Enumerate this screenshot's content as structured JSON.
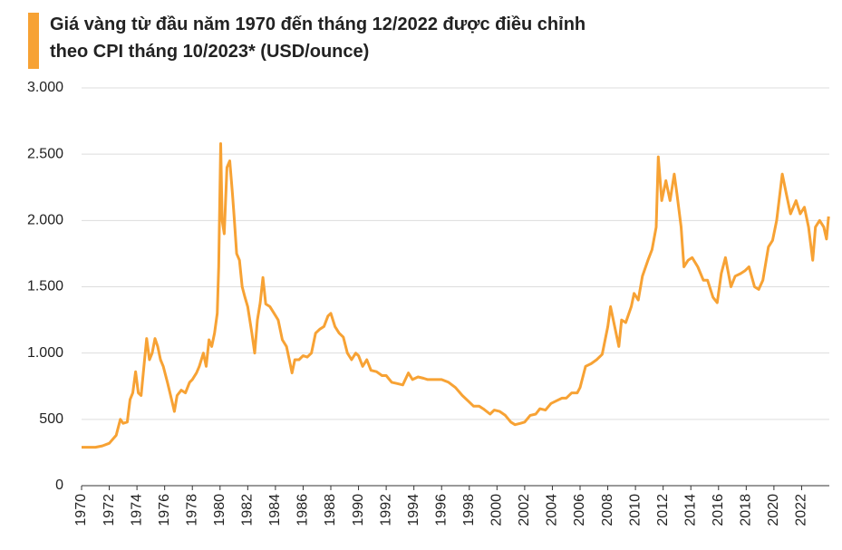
{
  "chart_data": {
    "type": "line",
    "title": [
      "Giá vàng từ đầu năm 1970 đến tháng 12/2022 được điều chỉnh",
      "theo CPI tháng 10/2023* (USD/ounce)"
    ],
    "xlim": [
      1970,
      2024
    ],
    "xticks": [
      1970,
      1972,
      1974,
      1976,
      1978,
      1980,
      1982,
      1984,
      1986,
      1988,
      1990,
      1992,
      1994,
      1996,
      1998,
      2000,
      2002,
      2004,
      2006,
      2008,
      2010,
      2012,
      2014,
      2016,
      2018,
      2020,
      2022
    ],
    "ylim": [
      0,
      3000
    ],
    "yticks": [
      0,
      500,
      {
        "value": 1000,
        "label": "1.000"
      },
      {
        "value": 1500,
        "label": "1.500"
      },
      {
        "value": 2000,
        "label": "2.000"
      },
      {
        "value": 2500,
        "label": "2.500"
      },
      {
        "value": 3000,
        "label": "3.000"
      }
    ],
    "grid": true,
    "color": "#f7a234",
    "x": [
      1970.0,
      1971.0,
      1971.5,
      1972.0,
      1972.5,
      1972.8,
      1973.0,
      1973.3,
      1973.5,
      1973.7,
      1973.9,
      1974.1,
      1974.3,
      1974.5,
      1974.7,
      1974.9,
      1975.1,
      1975.3,
      1975.5,
      1975.7,
      1975.9,
      1976.2,
      1976.5,
      1976.7,
      1976.9,
      1977.2,
      1977.5,
      1977.8,
      1978.0,
      1978.3,
      1978.5,
      1978.8,
      1979.0,
      1979.2,
      1979.4,
      1979.6,
      1979.8,
      1979.9,
      1980.05,
      1980.15,
      1980.3,
      1980.5,
      1980.7,
      1980.9,
      1981.0,
      1981.2,
      1981.4,
      1981.6,
      1981.8,
      1982.0,
      1982.3,
      1982.5,
      1982.7,
      1982.9,
      1983.1,
      1983.3,
      1983.6,
      1983.9,
      1984.2,
      1984.5,
      1984.8,
      1985.0,
      1985.2,
      1985.4,
      1985.7,
      1986.0,
      1986.3,
      1986.6,
      1986.9,
      1987.2,
      1987.5,
      1987.8,
      1988.0,
      1988.3,
      1988.6,
      1988.9,
      1989.2,
      1989.5,
      1989.8,
      1990.0,
      1990.3,
      1990.6,
      1990.9,
      1991.3,
      1991.7,
      1992.0,
      1992.4,
      1992.8,
      1993.2,
      1993.6,
      1993.9,
      1994.3,
      1994.7,
      1995.0,
      1995.5,
      1996.0,
      1996.5,
      1997.0,
      1997.5,
      1997.9,
      1998.3,
      1998.7,
      1999.0,
      1999.5,
      1999.8,
      2000.2,
      2000.6,
      2001.0,
      2001.3,
      2001.7,
      2002.0,
      2002.4,
      2002.8,
      2003.1,
      2003.5,
      2003.9,
      2004.3,
      2004.7,
      2005.0,
      2005.4,
      2005.8,
      2006.0,
      2006.4,
      2006.8,
      2007.2,
      2007.6,
      2008.0,
      2008.2,
      2008.5,
      2008.8,
      2009.0,
      2009.3,
      2009.7,
      2009.9,
      2010.2,
      2010.5,
      2010.9,
      2011.2,
      2011.5,
      2011.65,
      2011.9,
      2012.2,
      2012.5,
      2012.8,
      2013.0,
      2013.3,
      2013.5,
      2013.8,
      2014.1,
      2014.5,
      2014.9,
      2015.2,
      2015.6,
      2015.9,
      2016.2,
      2016.5,
      2016.9,
      2017.2,
      2017.6,
      2017.9,
      2018.2,
      2018.6,
      2018.9,
      2019.2,
      2019.6,
      2019.9,
      2020.2,
      2020.6,
      2020.9,
      2021.2,
      2021.6,
      2021.9,
      2022.2,
      2022.5,
      2022.8,
      2023.0,
      2023.3,
      2023.6,
      2023.8,
      2023.95
    ],
    "values": [
      290,
      290,
      300,
      320,
      380,
      500,
      470,
      480,
      650,
      700,
      860,
      700,
      680,
      900,
      1110,
      950,
      1000,
      1110,
      1050,
      950,
      900,
      780,
      650,
      560,
      680,
      720,
      700,
      780,
      800,
      850,
      900,
      1000,
      900,
      1100,
      1050,
      1150,
      1300,
      1650,
      2580,
      2000,
      1900,
      2400,
      2450,
      2200,
      2050,
      1750,
      1700,
      1500,
      1420,
      1350,
      1150,
      1000,
      1250,
      1380,
      1570,
      1370,
      1350,
      1300,
      1250,
      1100,
      1050,
      950,
      850,
      950,
      950,
      980,
      970,
      1000,
      1150,
      1180,
      1200,
      1280,
      1300,
      1200,
      1150,
      1120,
      1000,
      950,
      1000,
      980,
      900,
      950,
      870,
      860,
      830,
      830,
      780,
      770,
      760,
      850,
      800,
      820,
      810,
      800,
      800,
      800,
      780,
      740,
      680,
      640,
      600,
      600,
      580,
      540,
      570,
      560,
      530,
      480,
      460,
      470,
      480,
      530,
      540,
      580,
      570,
      620,
      640,
      660,
      660,
      700,
      700,
      740,
      900,
      920,
      950,
      990,
      1200,
      1350,
      1200,
      1050,
      1250,
      1230,
      1350,
      1450,
      1400,
      1580,
      1700,
      1780,
      1950,
      2480,
      2150,
      2300,
      2150,
      2350,
      2200,
      1950,
      1650,
      1700,
      1720,
      1650,
      1550,
      1550,
      1420,
      1380,
      1600,
      1720,
      1500,
      1580,
      1600,
      1620,
      1650,
      1500,
      1480,
      1550,
      1800,
      1850,
      2000,
      2350,
      2200,
      2050,
      2150,
      2050,
      2100,
      1950,
      1700,
      1950,
      2000,
      1950,
      1860,
      2030
    ]
  }
}
